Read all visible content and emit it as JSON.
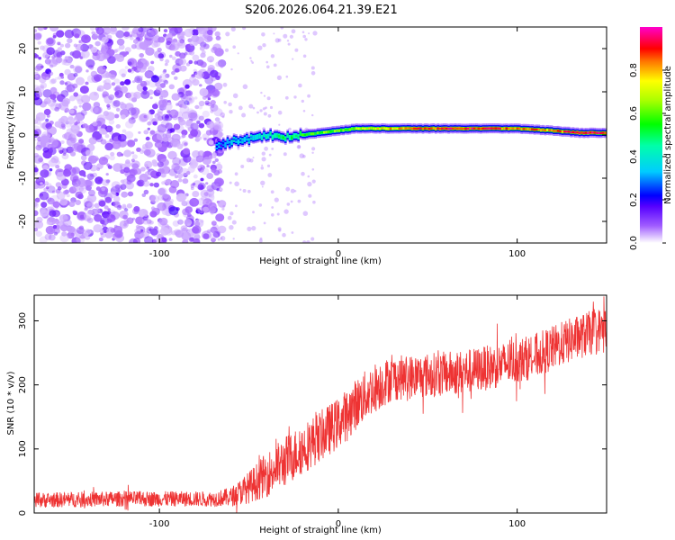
{
  "chart_data": [
    {
      "type": "heatmap",
      "title": "S206.2026.064.21.39.E21",
      "xlabel": "Height of straight line (km)",
      "ylabel": "Frequency (Hz)",
      "xlim": [
        -170,
        150
      ],
      "ylim": [
        -25,
        25
      ],
      "xticks": [
        -100,
        0,
        100
      ],
      "yticks": [
        -20,
        -10,
        0,
        10,
        20
      ],
      "colorbar": {
        "label": "Normalized spectral amplitude",
        "range": [
          0,
          1
        ],
        "ticks": [
          0,
          0.2,
          0.4,
          0.6,
          0.8
        ],
        "tick_labels": [
          "0.0",
          "0.2",
          "0.4",
          "0.6",
          "0.8"
        ]
      },
      "noise_region_x": [
        -170,
        -68
      ],
      "signal_track": {
        "x": [
          -68,
          -60,
          -50,
          -40,
          -30,
          -20,
          -10,
          0,
          10,
          20,
          40,
          60,
          80,
          100,
          120,
          135,
          150
        ],
        "freq": [
          -3,
          -1.5,
          -1,
          0,
          -0.5,
          0,
          0.5,
          1,
          1.5,
          1.5,
          1.5,
          1.5,
          1.5,
          1.5,
          1,
          0.5,
          0.5
        ],
        "amplitude": [
          0.2,
          0.3,
          0.35,
          0.4,
          0.5,
          0.55,
          0.6,
          0.6,
          0.65,
          0.75,
          0.85,
          0.9,
          0.9,
          0.85,
          0.8,
          0.95,
          0.9
        ]
      }
    },
    {
      "type": "line",
      "xlabel": "Height of straight line (km)",
      "ylabel": "SNR (10 * v/v)",
      "xlim": [
        -170,
        150
      ],
      "ylim": [
        0,
        340
      ],
      "xticks": [
        -100,
        0,
        100
      ],
      "yticks": [
        0,
        100,
        200,
        300
      ],
      "series": [
        {
          "name": "SNR",
          "color": "#ee3333",
          "trend_x": [
            -170,
            -120,
            -70,
            -60,
            -50,
            -40,
            -30,
            -20,
            -10,
            0,
            10,
            20,
            30,
            50,
            70,
            90,
            110,
            130,
            150
          ],
          "trend_y": [
            20,
            22,
            22,
            25,
            40,
            60,
            80,
            100,
            120,
            140,
            170,
            195,
            210,
            215,
            220,
            230,
            245,
            270,
            290
          ],
          "noise_amplitude": [
            12,
            12,
            12,
            15,
            25,
            35,
            40,
            40,
            40,
            40,
            40,
            40,
            35,
            35,
            35,
            35,
            35,
            35,
            35
          ]
        }
      ]
    }
  ]
}
